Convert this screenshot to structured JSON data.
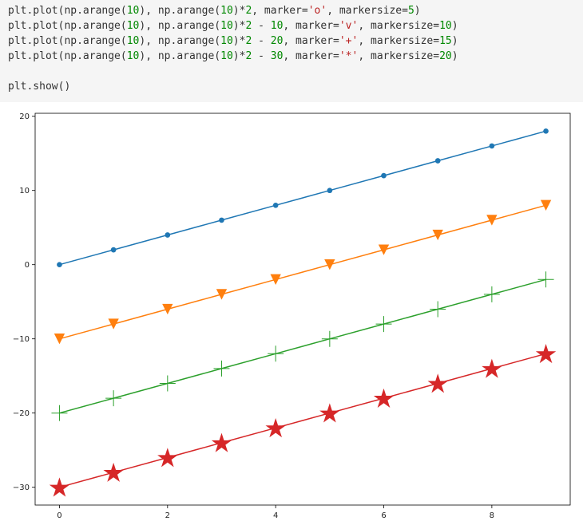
{
  "code": {
    "lines": [
      [
        {
          "t": "plt.plot(np.arange(",
          "c": "plain"
        },
        {
          "t": "10",
          "c": "num"
        },
        {
          "t": "), np.arange(",
          "c": "plain"
        },
        {
          "t": "10",
          "c": "num"
        },
        {
          "t": ")*",
          "c": "plain"
        },
        {
          "t": "2",
          "c": "num"
        },
        {
          "t": ", marker=",
          "c": "plain"
        },
        {
          "t": "'o'",
          "c": "str"
        },
        {
          "t": ", markersize=",
          "c": "plain"
        },
        {
          "t": "5",
          "c": "num"
        },
        {
          "t": ")",
          "c": "plain"
        }
      ],
      [
        {
          "t": "plt.plot(np.arange(",
          "c": "plain"
        },
        {
          "t": "10",
          "c": "num"
        },
        {
          "t": "), np.arange(",
          "c": "plain"
        },
        {
          "t": "10",
          "c": "num"
        },
        {
          "t": ")*",
          "c": "plain"
        },
        {
          "t": "2",
          "c": "num"
        },
        {
          "t": " - ",
          "c": "plain"
        },
        {
          "t": "10",
          "c": "num"
        },
        {
          "t": ", marker=",
          "c": "plain"
        },
        {
          "t": "'v'",
          "c": "str"
        },
        {
          "t": ", markersize=",
          "c": "plain"
        },
        {
          "t": "10",
          "c": "num"
        },
        {
          "t": ")",
          "c": "plain"
        }
      ],
      [
        {
          "t": "plt.plot(np.arange(",
          "c": "plain"
        },
        {
          "t": "10",
          "c": "num"
        },
        {
          "t": "), np.arange(",
          "c": "plain"
        },
        {
          "t": "10",
          "c": "num"
        },
        {
          "t": ")*",
          "c": "plain"
        },
        {
          "t": "2",
          "c": "num"
        },
        {
          "t": " - ",
          "c": "plain"
        },
        {
          "t": "20",
          "c": "num"
        },
        {
          "t": ", marker=",
          "c": "plain"
        },
        {
          "t": "'+'",
          "c": "str"
        },
        {
          "t": ", markersize=",
          "c": "plain"
        },
        {
          "t": "15",
          "c": "num"
        },
        {
          "t": ")",
          "c": "plain"
        }
      ],
      [
        {
          "t": "plt.plot(np.arange(",
          "c": "plain"
        },
        {
          "t": "10",
          "c": "num"
        },
        {
          "t": "), np.arange(",
          "c": "plain"
        },
        {
          "t": "10",
          "c": "num"
        },
        {
          "t": ")*",
          "c": "plain"
        },
        {
          "t": "2",
          "c": "num"
        },
        {
          "t": " - ",
          "c": "plain"
        },
        {
          "t": "30",
          "c": "num"
        },
        {
          "t": ", marker=",
          "c": "plain"
        },
        {
          "t": "'*'",
          "c": "str"
        },
        {
          "t": ", markersize=",
          "c": "plain"
        },
        {
          "t": "20",
          "c": "num"
        },
        {
          "t": ")",
          "c": "plain"
        }
      ],
      [],
      [
        {
          "t": "plt.show()",
          "c": "plain"
        }
      ]
    ]
  },
  "chart_data": {
    "type": "line",
    "title": "",
    "xlabel": "",
    "ylabel": "",
    "grid": false,
    "xlim": [
      -0.45,
      9.45
    ],
    "ylim": [
      -32.4,
      20.4
    ],
    "xticks": [
      0,
      2,
      4,
      6,
      8
    ],
    "yticks": [
      -30,
      -20,
      -10,
      0,
      10,
      20
    ],
    "x": [
      0,
      1,
      2,
      3,
      4,
      5,
      6,
      7,
      8,
      9
    ],
    "series": [
      {
        "values": [
          0,
          2,
          4,
          6,
          8,
          10,
          12,
          14,
          16,
          18
        ],
        "marker": "o",
        "markersize": 5,
        "color": "#1f77b4"
      },
      {
        "values": [
          -10,
          -8,
          -6,
          -4,
          -2,
          0,
          2,
          4,
          6,
          8
        ],
        "marker": "v",
        "markersize": 10,
        "color": "#ff7f0e"
      },
      {
        "values": [
          -20,
          -18,
          -16,
          -14,
          -12,
          -10,
          -8,
          -6,
          -4,
          -2
        ],
        "marker": "+",
        "markersize": 15,
        "color": "#2ca02c"
      },
      {
        "values": [
          -30,
          -28,
          -26,
          -24,
          -22,
          -20,
          -18,
          -16,
          -14,
          -12
        ],
        "marker": "*",
        "markersize": 20,
        "color": "#d62728"
      }
    ]
  }
}
